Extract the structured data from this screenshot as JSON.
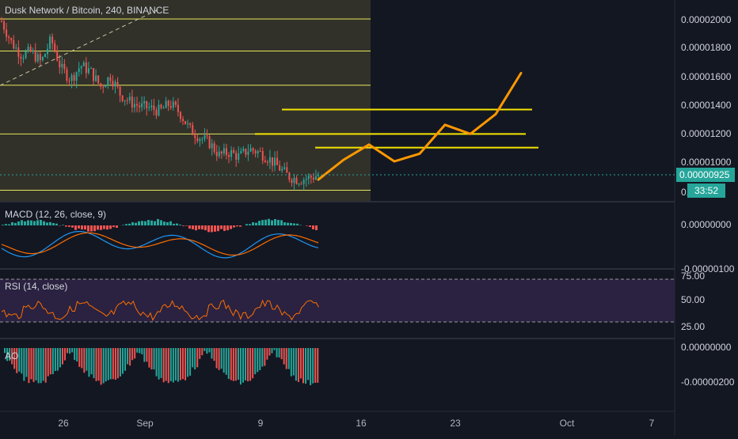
{
  "chart": {
    "title": "Dusk Network / Bitcoin, 240, BINANCE",
    "current_price": "0.00000925",
    "countdown": "33:52",
    "price_axis_labels": [
      "0.00002000",
      "0.00001800",
      "0.00001600",
      "0.00001400",
      "0.00001200",
      "0.00001000",
      "0.00000"
    ],
    "time_axis_labels": [
      "26",
      "Sep",
      "9",
      "16",
      "23",
      "Oct",
      "7"
    ],
    "colors": {
      "background": "#131722",
      "highlight_zone": "#3a3a30",
      "up_candle": "#26a69a",
      "down_candle": "#ef5350",
      "levels": "#e9e65a",
      "projection": "#ff9800",
      "macd_line": "#2196f3",
      "signal_line": "#ff6d00",
      "rsi_line": "#ff6d00",
      "rsi_band": "#2a2240"
    }
  },
  "indicators": {
    "macd": {
      "label": "MACD (12, 26, close, 9)",
      "axis_labels": [
        "0.00000000",
        "-0.00000100"
      ]
    },
    "rsi": {
      "label": "RSI (14, close)",
      "axis_labels": [
        "75.00",
        "50.00",
        "25.00"
      ]
    },
    "ao": {
      "label": "AO",
      "axis_labels": [
        "0.00000000",
        "-0.00000200"
      ]
    }
  },
  "chart_data": {
    "type": "candlestick",
    "symbol": "Dusk Network / Bitcoin",
    "interval": "240",
    "exchange": "BINANCE",
    "ylim": [
      7.8e-06,
      2.1e-05
    ],
    "price_path": [
      1.96e-05,
      1.82e-05,
      1.74e-05,
      1.76e-05,
      1.69e-05,
      1.84e-05,
      1.65e-05,
      1.58e-05,
      1.67e-05,
      1.63e-05,
      1.53e-05,
      1.6e-05,
      1.48e-05,
      1.43e-05,
      1.4e-05,
      1.39e-05,
      1.37e-05,
      1.42e-05,
      1.36e-05,
      1.25e-05,
      1.2e-05,
      1.16e-05,
      1.08e-05,
      1.1e-05,
      1.07e-05,
      1.12e-05,
      1.1e-05,
      1.06e-05,
      1e-05,
      9.4e-06,
      9.2e-06,
      9.3e-06,
      9.5e-06
    ],
    "horizontal_levels": [
      1.975e-05,
      1.765e-05,
      1.54e-05,
      1.22e-05,
      8.5e-06
    ],
    "projected_levels": [
      1.38e-05,
      1.22e-05,
      1.13e-05
    ],
    "projection_path": [
      9.2e-06,
      1.05e-05,
      1.15e-05,
      1.04e-05,
      1.09e-05,
      1.28e-05,
      1.22e-05,
      1.35e-05,
      1.62e-05
    ]
  }
}
